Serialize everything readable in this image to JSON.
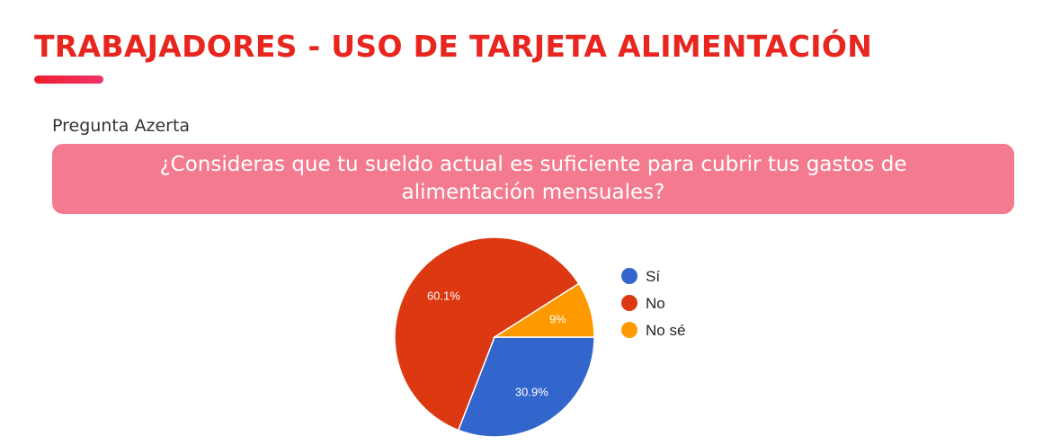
{
  "header": {
    "title": "TRABAJADORES - USO DE TARJETA ALIMENTACIÓN",
    "accent_color": "#e8261f"
  },
  "source_label": "Pregunta Azerta",
  "question": {
    "text": "¿Consideras que tu sueldo actual es suficiente para cubrir tus gastos de alimentación mensuales?",
    "box_color": "#f47a8f"
  },
  "chart_data": {
    "type": "pie",
    "categories": [
      "Sí",
      "No",
      "No sé"
    ],
    "values": [
      30.9,
      60.1,
      9.0
    ],
    "data_labels": [
      "30.9%",
      "60.1%",
      "9%"
    ],
    "colors": [
      "#3366cc",
      "#dc3912",
      "#ff9900"
    ],
    "legend_position": "right"
  }
}
